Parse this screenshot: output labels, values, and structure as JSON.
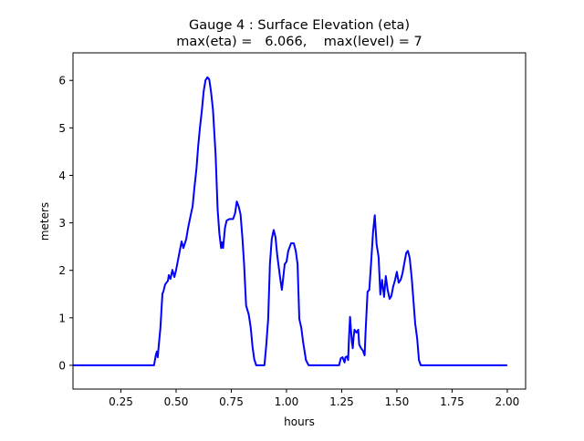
{
  "chart_data": {
    "type": "line",
    "title_line1": "Gauge 4 : Surface Elevation (eta)",
    "title_line2": "max(eta) =   6.066,    max(level) = 7",
    "xlabel": "hours",
    "ylabel": "meters",
    "xlim": [
      0.033,
      2.083
    ],
    "ylim": [
      -0.5,
      6.58
    ],
    "xticks": [
      0.25,
      0.5,
      0.75,
      1.0,
      1.25,
      1.5,
      1.75,
      2.0
    ],
    "xtick_labels": [
      "0.25",
      "0.50",
      "0.75",
      "1.00",
      "1.25",
      "1.50",
      "1.75",
      "2.00"
    ],
    "yticks": [
      0,
      1,
      2,
      3,
      4,
      5,
      6
    ],
    "ytick_labels": [
      "0",
      "1",
      "2",
      "3",
      "4",
      "5",
      "6"
    ],
    "grid": false,
    "series": [
      {
        "name": "eta",
        "color": "#0000ff",
        "x": [
          0.033,
          0.367,
          0.4,
          0.408,
          0.413,
          0.417,
          0.421,
          0.429,
          0.438,
          0.442,
          0.45,
          0.463,
          0.467,
          0.475,
          0.483,
          0.492,
          0.5,
          0.525,
          0.533,
          0.546,
          0.554,
          0.567,
          0.575,
          0.583,
          0.592,
          0.6,
          0.608,
          0.617,
          0.625,
          0.633,
          0.642,
          0.65,
          0.658,
          0.667,
          0.679,
          0.688,
          0.696,
          0.704,
          0.708,
          0.713,
          0.721,
          0.729,
          0.742,
          0.758,
          0.767,
          0.775,
          0.783,
          0.792,
          0.8,
          0.808,
          0.817,
          0.829,
          0.838,
          0.846,
          0.854,
          0.863,
          0.9,
          0.908,
          0.917,
          0.925,
          0.933,
          0.942,
          0.95,
          0.958,
          0.971,
          0.979,
          0.988,
          0.992,
          1.0,
          1.008,
          1.021,
          1.033,
          1.042,
          1.05,
          1.058,
          1.067,
          1.075,
          1.088,
          1.1,
          1.238,
          1.246,
          1.254,
          1.263,
          1.267,
          1.275,
          1.279,
          1.283,
          1.288,
          1.296,
          1.3,
          1.304,
          1.308,
          1.317,
          1.325,
          1.329,
          1.338,
          1.346,
          1.354,
          1.358,
          1.367,
          1.375,
          1.383,
          1.392,
          1.4,
          1.408,
          1.417,
          1.425,
          1.433,
          1.442,
          1.45,
          1.458,
          1.467,
          1.475,
          1.483,
          1.492,
          1.5,
          1.508,
          1.517,
          1.525,
          1.533,
          1.542,
          1.55,
          1.558,
          1.567,
          1.575,
          1.583,
          1.592,
          1.6,
          1.608,
          2.0
        ],
        "y": [
          0,
          0,
          0,
          0.21,
          0.29,
          0.17,
          0.4,
          0.79,
          1.51,
          1.55,
          1.7,
          1.78,
          1.9,
          1.82,
          2.01,
          1.86,
          2.01,
          2.61,
          2.47,
          2.66,
          2.89,
          3.18,
          3.35,
          3.75,
          4.14,
          4.62,
          5.0,
          5.38,
          5.77,
          6.0,
          6.066,
          6.02,
          5.77,
          5.38,
          4.43,
          3.28,
          2.78,
          2.47,
          2.59,
          2.47,
          2.89,
          3.05,
          3.08,
          3.08,
          3.2,
          3.45,
          3.35,
          3.18,
          2.7,
          2.13,
          1.26,
          1.07,
          0.79,
          0.4,
          0.13,
          0,
          0,
          0.4,
          0.98,
          2.13,
          2.66,
          2.85,
          2.7,
          2.32,
          1.84,
          1.59,
          1.97,
          2.13,
          2.18,
          2.41,
          2.57,
          2.57,
          2.41,
          2.13,
          0.98,
          0.79,
          0.5,
          0.11,
          0,
          0,
          0.15,
          0.17,
          0.06,
          0.17,
          0.19,
          0.11,
          0.56,
          1.02,
          0.5,
          0.36,
          0.59,
          0.75,
          0.69,
          0.75,
          0.44,
          0.36,
          0.31,
          0.21,
          0.69,
          1.55,
          1.59,
          2.13,
          2.8,
          3.16,
          2.55,
          2.28,
          1.49,
          1.8,
          1.44,
          1.88,
          1.59,
          1.4,
          1.46,
          1.65,
          1.8,
          1.97,
          1.74,
          1.8,
          1.93,
          2.13,
          2.36,
          2.41,
          2.26,
          1.84,
          1.36,
          0.88,
          0.56,
          0.11,
          0,
          0
        ]
      }
    ]
  }
}
